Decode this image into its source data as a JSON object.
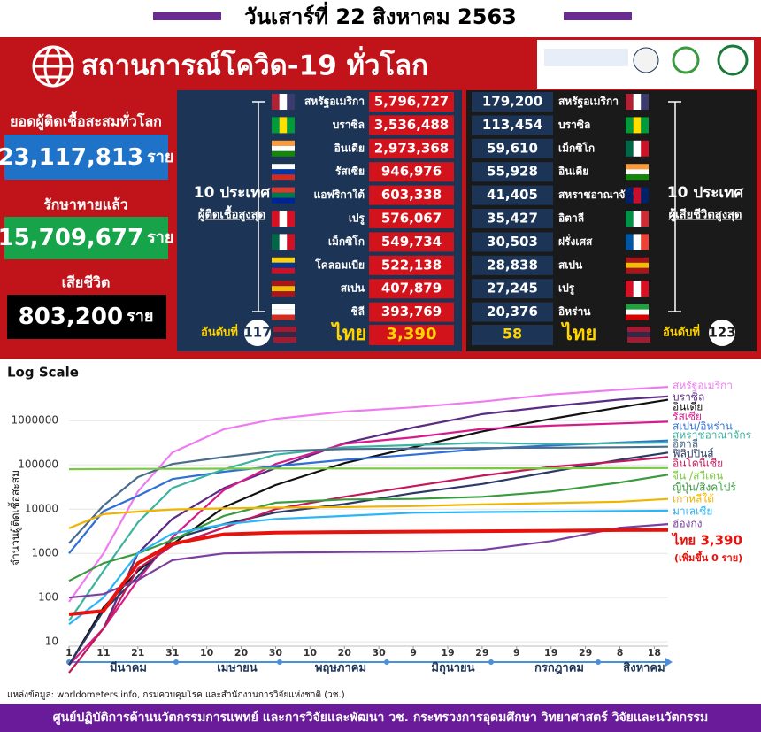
{
  "header": {
    "date": "วันเสาร์ที่ 22 สิงหาคม 2563",
    "title": "สถานการณ์โควิด-19 ทั่วโลก"
  },
  "summary": [
    {
      "label": "ยอดผู้ติดเชื้อสะสมทั่วโลก",
      "value": "23,117,813",
      "unit": "ราย"
    },
    {
      "label": "รักษาหายแล้ว",
      "value": "15,709,677",
      "unit": "ราย"
    },
    {
      "label": "เสียชีวิต",
      "value": "803,200",
      "unit": "ราย"
    }
  ],
  "cases_table": {
    "title": "10 ประเทศ",
    "subtitle": "ผู้ติดเชื้อสูงสุด",
    "rows": [
      [
        "สหรัฐอเมริกา",
        "5,796,727"
      ],
      [
        "บราซิล",
        "3,536,488"
      ],
      [
        "อินเดีย",
        "2,973,368"
      ],
      [
        "รัสเซีย",
        "946,976"
      ],
      [
        "แอฟริกาใต้",
        "603,338"
      ],
      [
        "เปรู",
        "576,067"
      ],
      [
        "เม็กซิโก",
        "549,734"
      ],
      [
        "โคลอมเบีย",
        "522,138"
      ],
      [
        "สเปน",
        "407,879"
      ],
      [
        "ชิลี",
        "393,769"
      ]
    ],
    "thai": {
      "rank_label": "อันดับที่",
      "rank": "117",
      "name": "ไทย",
      "value": "3,390"
    }
  },
  "deaths_table": {
    "title": "10 ประเทศ",
    "subtitle": "ผู้เสียชีวิตสูงสุด",
    "rows": [
      [
        "179,200",
        "สหรัฐอเมริกา"
      ],
      [
        "113,454",
        "บราซิล"
      ],
      [
        "59,610",
        "เม็กซิโก"
      ],
      [
        "55,928",
        "อินเดีย"
      ],
      [
        "41,405",
        "สหราชอาณาจักร"
      ],
      [
        "35,427",
        "อิตาลี"
      ],
      [
        "30,503",
        "ฝรั่งเศส"
      ],
      [
        "28,838",
        "สเปน"
      ],
      [
        "27,245",
        "เปรู"
      ],
      [
        "20,376",
        "อิหร่าน"
      ]
    ],
    "thai": {
      "rank_label": "อันดับที่",
      "rank": "123",
      "name": "ไทย",
      "value": "58"
    }
  },
  "chart_data": {
    "type": "line",
    "title": "Log Scale",
    "y_label": "จำนวนผู้ติดเชื้อสะสม",
    "log_scale": true,
    "x": [
      0,
      10,
      20,
      30,
      45,
      60,
      80,
      100,
      120,
      140,
      160,
      174
    ],
    "xlim": [
      0,
      174
    ],
    "xticks": [
      {
        "value": 0,
        "label": "1"
      },
      {
        "value": 10,
        "label": "11"
      },
      {
        "value": 20,
        "label": "21"
      },
      {
        "value": 30,
        "label": "31"
      },
      {
        "value": 40,
        "label": "10"
      },
      {
        "value": 50,
        "label": "20"
      },
      {
        "value": 60,
        "label": "30"
      },
      {
        "value": 70,
        "label": "10"
      },
      {
        "value": 80,
        "label": "20"
      },
      {
        "value": 90,
        "label": "30"
      },
      {
        "value": 100,
        "label": "9"
      },
      {
        "value": 110,
        "label": "19"
      },
      {
        "value": 120,
        "label": "29"
      },
      {
        "value": 130,
        "label": "9"
      },
      {
        "value": 140,
        "label": "19"
      },
      {
        "value": 150,
        "label": "29"
      },
      {
        "value": 160,
        "label": "8"
      },
      {
        "value": 170,
        "label": "18"
      }
    ],
    "months": [
      "มีนาคม",
      "เมษายน",
      "พฤษภาคม",
      "มิถุนายน",
      "กรกฎาคม",
      "สิงหาคม"
    ],
    "ylim": [
      8,
      7000000
    ],
    "yticks": [
      10,
      100,
      1000,
      10000,
      100000,
      1000000
    ],
    "series": [
      {
        "name": "สหรัฐอเมริกา",
        "color": "#ee7cf0",
        "values": [
          80,
          1000,
          25000,
          190000,
          640000,
          1100000,
          1600000,
          2000000,
          2700000,
          3900000,
          5000000,
          5800000
        ]
      },
      {
        "name": "บราซิล",
        "color": "#5b2c83",
        "values": [
          null,
          20,
          1000,
          6000,
          30000,
          85000,
          310000,
          700000,
          1400000,
          2100000,
          3000000,
          3540000
        ]
      },
      {
        "name": "อินเดีย",
        "color": "#111111",
        "values": [
          3,
          60,
          400,
          1600,
          11000,
          35000,
          110000,
          250000,
          570000,
          1100000,
          2000000,
          2970000
        ]
      },
      {
        "name": "รัสเซีย",
        "color": "#d81b8c",
        "values": [
          3,
          20,
          250,
          2300,
          27000,
          105000,
          300000,
          420000,
          650000,
          770000,
          870000,
          947000
        ]
      },
      {
        "name": "สเปน/อิหร่าน",
        "color": "#2f6fd6",
        "values": [
          1000,
          9000,
          20000,
          48000,
          70000,
          94000,
          130000,
          170000,
          230000,
          275000,
          320000,
          355000
        ]
      },
      {
        "name": "สหราชอาณาจักร",
        "color": "#3cb3a0",
        "values": [
          30,
          400,
          5000,
          30000,
          80000,
          170000,
          250000,
          280000,
          315000,
          295000,
          310000,
          320000
        ]
      },
      {
        "name": "อิตาลี",
        "color": "#4a6b8a",
        "values": [
          1700,
          12000,
          53000,
          105000,
          150000,
          205000,
          228000,
          235000,
          240000,
          245000,
          250000,
          257000
        ]
      },
      {
        "name": "ฟิลิปปินส์",
        "color": "#2b3a67",
        "values": [
          3,
          50,
          300,
          2100,
          4600,
          8400,
          13000,
          23000,
          37000,
          70000,
          130000,
          190000
        ]
      },
      {
        "name": "อินโดนีเซีย",
        "color": "#c2185b",
        "values": [
          2,
          20,
          450,
          1500,
          3800,
          10000,
          19000,
          33000,
          57000,
          90000,
          120000,
          150000
        ]
      },
      {
        "name": "จีน /สวีเดน",
        "color": "#7ac943",
        "values": [
          80000,
          80700,
          81300,
          81500,
          82000,
          82800,
          82900,
          83000,
          83500,
          83600,
          84500,
          85000
        ]
      },
      {
        "name": "ญี่ปุ่น/สิงคโปร์",
        "color": "#3a9a3e",
        "values": [
          240,
          600,
          1000,
          2000,
          7000,
          14000,
          16500,
          17000,
          19000,
          25000,
          40000,
          60000
        ]
      },
      {
        "name": "เกาหลีใต้",
        "color": "#f0b400",
        "values": [
          3700,
          7700,
          8800,
          9800,
          10400,
          10800,
          11100,
          11700,
          12800,
          13700,
          14700,
          17000
        ]
      },
      {
        "name": "มาเลเซีย",
        "color": "#29b6f6",
        "values": [
          25,
          100,
          1000,
          2800,
          4500,
          6000,
          7000,
          8300,
          8600,
          8800,
          9100,
          9200
        ]
      },
      {
        "name": "ฮ่องกง",
        "color": "#7b3fa0",
        "values": [
          100,
          120,
          250,
          700,
          1000,
          1040,
          1070,
          1100,
          1200,
          1900,
          3800,
          4600
        ]
      },
      {
        "name": "ไทย 3,390",
        "color": "#e8120c",
        "values": [
          42,
          50,
          600,
          1650,
          2700,
          2950,
          3040,
          3100,
          3170,
          3250,
          3350,
          3390
        ]
      }
    ],
    "annotation": "(เพิ่มขึ้น 0 ราย)"
  },
  "source": "แหล่งข้อมูล: worldometers.info, กรมควบคุมโรค และสำนักงานการวิจัยแห่งชาติ (วช.)",
  "footer": "ศูนย์ปฏิบัติการด้านนวัตกรรมการแพทย์ และการวิจัยและพัฒนา   วช.   กระทรวงการอุดมศึกษา วิทยาศาสตร์ วิจัยและนวัตกรรม"
}
